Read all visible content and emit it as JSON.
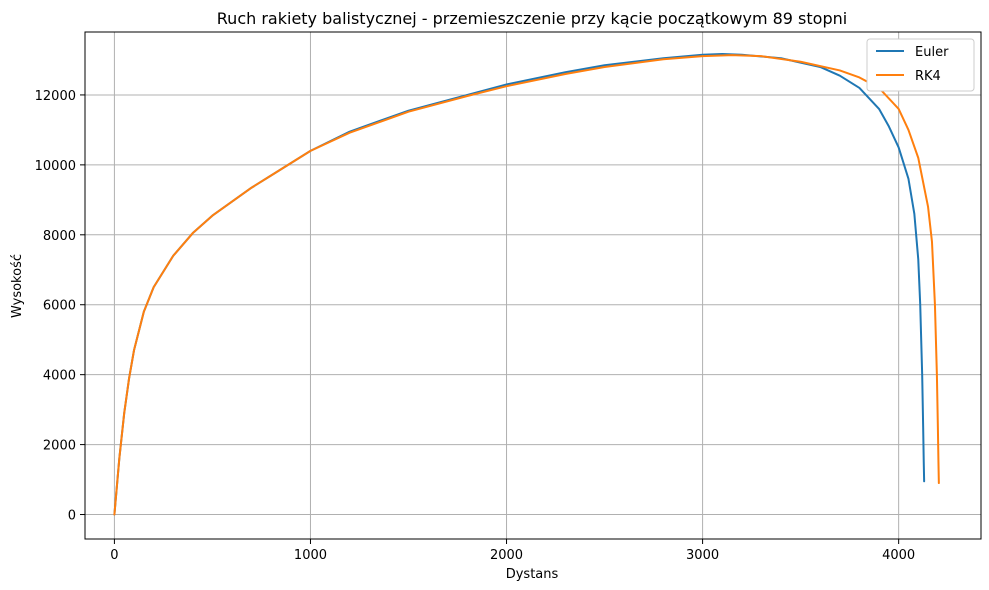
{
  "chart_data": {
    "type": "line",
    "title": "Ruch rakiety balistycznej - przemieszczenie przy kącie początkowym 89 stopni",
    "xlabel": "Dystans",
    "ylabel": "Wysokość",
    "xlim": [
      -150,
      4420
    ],
    "ylim": [
      -700,
      13800
    ],
    "xticks": [
      0,
      1000,
      2000,
      3000,
      4000
    ],
    "yticks": [
      0,
      2000,
      4000,
      6000,
      8000,
      10000,
      12000
    ],
    "xtick_labels": [
      "0",
      "1000",
      "2000",
      "3000",
      "4000"
    ],
    "ytick_labels": [
      "0",
      "2000",
      "4000",
      "6000",
      "8000",
      "10000",
      "12000"
    ],
    "grid": true,
    "legend_position": "top-right",
    "series": [
      {
        "name": "Euler",
        "color": "#1f77b4",
        "points": [
          [
            0,
            0
          ],
          [
            25,
            1600
          ],
          [
            50,
            2900
          ],
          [
            75,
            3900
          ],
          [
            100,
            4700
          ],
          [
            150,
            5800
          ],
          [
            200,
            6500
          ],
          [
            300,
            7400
          ],
          [
            400,
            8050
          ],
          [
            500,
            8550
          ],
          [
            600,
            8950
          ],
          [
            700,
            9350
          ],
          [
            800,
            9700
          ],
          [
            1000,
            10400
          ],
          [
            1200,
            10950
          ],
          [
            1500,
            11550
          ],
          [
            1800,
            12000
          ],
          [
            2000,
            12300
          ],
          [
            2300,
            12650
          ],
          [
            2500,
            12850
          ],
          [
            2800,
            13050
          ],
          [
            3000,
            13150
          ],
          [
            3100,
            13170
          ],
          [
            3200,
            13150
          ],
          [
            3400,
            13050
          ],
          [
            3600,
            12800
          ],
          [
            3700,
            12550
          ],
          [
            3800,
            12200
          ],
          [
            3900,
            11600
          ],
          [
            3950,
            11100
          ],
          [
            4000,
            10500
          ],
          [
            4050,
            9600
          ],
          [
            4080,
            8600
          ],
          [
            4100,
            7300
          ],
          [
            4110,
            6000
          ],
          [
            4120,
            4000
          ],
          [
            4125,
            2500
          ],
          [
            4128,
            1500
          ],
          [
            4130,
            950
          ]
        ]
      },
      {
        "name": "RK4",
        "color": "#ff7f0e",
        "points": [
          [
            0,
            0
          ],
          [
            25,
            1600
          ],
          [
            50,
            2900
          ],
          [
            75,
            3900
          ],
          [
            100,
            4700
          ],
          [
            150,
            5800
          ],
          [
            200,
            6500
          ],
          [
            300,
            7400
          ],
          [
            400,
            8050
          ],
          [
            500,
            8550
          ],
          [
            600,
            8950
          ],
          [
            700,
            9350
          ],
          [
            800,
            9700
          ],
          [
            1000,
            10400
          ],
          [
            1200,
            10920
          ],
          [
            1500,
            11520
          ],
          [
            1800,
            11970
          ],
          [
            2000,
            12250
          ],
          [
            2300,
            12600
          ],
          [
            2500,
            12800
          ],
          [
            2800,
            13020
          ],
          [
            3000,
            13110
          ],
          [
            3150,
            13140
          ],
          [
            3300,
            13110
          ],
          [
            3500,
            12950
          ],
          [
            3700,
            12700
          ],
          [
            3800,
            12500
          ],
          [
            3900,
            12200
          ],
          [
            4000,
            11600
          ],
          [
            4050,
            11000
          ],
          [
            4100,
            10200
          ],
          [
            4150,
            8800
          ],
          [
            4170,
            7800
          ],
          [
            4185,
            6000
          ],
          [
            4195,
            4000
          ],
          [
            4200,
            2500
          ],
          [
            4203,
            1500
          ],
          [
            4205,
            900
          ]
        ]
      }
    ]
  }
}
